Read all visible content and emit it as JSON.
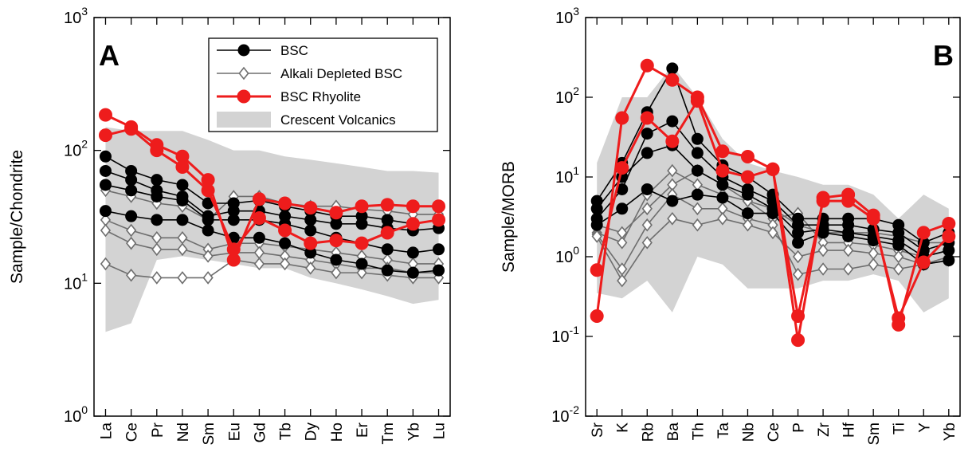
{
  "chart_data": [
    {
      "type": "line",
      "annotation": "A",
      "ylabel": "Sample/Chondrite",
      "ylog": true,
      "categories": [
        "La",
        "Ce",
        "Pr",
        "Nd",
        "Sm",
        "Eu",
        "Gd",
        "Tb",
        "Dy",
        "Ho",
        "Er",
        "Tm",
        "Yb",
        "Lu"
      ],
      "ylim": [
        1,
        1000
      ],
      "yticks": [
        {
          "value": 1,
          "label": "10",
          "exponent": "0"
        },
        {
          "value": 10,
          "label": "10",
          "exponent": "1"
        },
        {
          "value": 100,
          "label": "10",
          "exponent": "2"
        },
        {
          "value": 1000,
          "label": "10",
          "exponent": "3"
        }
      ],
      "legend": "top-right",
      "series": [
        {
          "name": "BSC",
          "color": "#000000",
          "marker": "circle",
          "samples": [
            [
              90,
              70,
              60,
              55,
              40,
              40,
              42,
              38,
              35,
              32,
              32,
              30,
              28,
              30
            ],
            [
              70,
              60,
              50,
              45,
              32,
              35,
              35,
              32,
              30,
              28,
              28,
              26,
              25,
              26
            ],
            [
              55,
              50,
              45,
              42,
              30,
              30,
              30,
              28,
              25,
              22,
              20,
              18,
              17,
              18
            ],
            [
              35,
              32,
              30,
              30,
              25,
              22,
              22,
              20,
              17,
              15,
              14,
              12.5,
              12,
              12.5
            ]
          ]
        },
        {
          "name": "Alkali Depleted BSC",
          "color": "#6e6e6e",
          "marker": "diamond",
          "samples": [
            [
              50,
              45,
              40,
              38,
              30,
              45,
              45,
              40,
              38,
              38,
              36,
              35,
              33,
              33
            ],
            [
              30,
              25,
              22,
              22,
              18,
              20,
              20,
              19,
              18,
              17,
              16,
              15,
              14,
              14
            ],
            [
              25,
              20,
              18,
              18,
              16,
              17,
              17,
              16,
              15,
              14,
              13,
              13,
              12,
              12
            ],
            [
              14,
              11.5,
              11,
              11,
              11,
              15,
              14,
              14,
              13,
              12,
              12,
              11.5,
              11,
              11
            ]
          ]
        },
        {
          "name": "BSC Rhyolite",
          "color": "#ee1c1c",
          "marker": "circle",
          "samples": [
            [
              185,
              150,
              110,
              90,
              60,
              15,
              43,
              40,
              37,
              34,
              38,
              39,
              38,
              38
            ],
            [
              130,
              145,
              100,
              75,
              50,
              18,
              31,
              25,
              20,
              21,
              20,
              24,
              28,
              30
            ]
          ]
        },
        {
          "name": "Crescent Volcanics",
          "color": "#d3d3d3",
          "band": true,
          "upper": [
            150,
            140,
            140,
            140,
            120,
            100,
            100,
            90,
            85,
            80,
            75,
            70,
            70,
            68
          ],
          "lower": [
            4.3,
            5,
            15,
            16,
            15,
            14,
            13,
            13,
            11,
            10,
            9,
            8,
            7,
            7.5
          ]
        }
      ]
    },
    {
      "type": "line",
      "annotation": "B",
      "ylabel": "Sample/MORB",
      "ylog": true,
      "categories": [
        "Sr",
        "K",
        "Rb",
        "Ba",
        "Th",
        "Ta",
        "Nb",
        "Ce",
        "P",
        "Zr",
        "Hf",
        "Sm",
        "Ti",
        "Y",
        "Yb"
      ],
      "ylim": [
        0.01,
        1000
      ],
      "yticks": [
        {
          "value": 0.01,
          "label": "10",
          "exponent": "-2"
        },
        {
          "value": 0.1,
          "label": "10",
          "exponent": "-1"
        },
        {
          "value": 1,
          "label": "10",
          "exponent": "0"
        },
        {
          "value": 10,
          "label": "10",
          "exponent": "1"
        },
        {
          "value": 100,
          "label": "10",
          "exponent": "2"
        },
        {
          "value": 1000,
          "label": "10",
          "exponent": "3"
        }
      ],
      "series": [
        {
          "color": "#000000",
          "marker": "circle",
          "samples": [
            [
              5,
              15,
              65,
              230,
              30,
              14,
              10,
              6,
              3,
              3,
              3,
              3,
              2.5,
              1.5,
              2
            ],
            [
              4,
              10,
              20,
              25,
              12,
              8,
              6,
              4,
              2,
              2.2,
              2,
              1.8,
              1.6,
              1,
              1.2
            ],
            [
              3,
              7,
              35,
              50,
              20,
              10,
              7,
              5,
              2.5,
              2.5,
              2.5,
              2.2,
              2,
              1.2,
              1.5
            ],
            [
              2.5,
              4,
              7,
              5,
              6,
              5.5,
              3.5,
              3.5,
              1.5,
              2,
              1.8,
              1.6,
              1.4,
              0.8,
              0.9
            ]
          ]
        },
        {
          "color": "#6e6e6e",
          "marker": "diamond",
          "samples": [
            [
              2,
              1.5,
              6,
              12,
              8,
              6,
              5,
              4,
              2.5,
              2,
              2,
              2,
              1.8,
              1.5,
              1.5
            ],
            [
              2.5,
              2,
              4,
              8,
              12,
              8,
              5,
              3,
              3.5,
              1.5,
              1.5,
              1.4,
              1.2,
              1,
              1.2
            ],
            [
              1.9,
              0.7,
              2.5,
              6,
              4,
              4,
              3,
              2.5,
              0.6,
              0.7,
              0.7,
              0.8,
              0.7,
              0.8,
              0.9
            ],
            [
              1.8,
              0.5,
              1.5,
              3,
              2.5,
              3,
              2.5,
              2,
              1,
              1.2,
              1.2,
              1.1,
              1,
              0.8,
              1
            ]
          ]
        },
        {
          "color": "#ee1c1c",
          "marker": "circle",
          "samples": [
            [
              0.18,
              55,
              250,
              165,
              100,
              21,
              18,
              12.5,
              0.09,
              5.5,
              6,
              3.3,
              0.14,
              2,
              2.6
            ],
            [
              0.68,
              13,
              55,
              28,
              90,
              12,
              10,
              12.5,
              0.18,
              5,
              5,
              3,
              0.17,
              0.85,
              1.8
            ]
          ]
        },
        {
          "color": "#d3d3d3",
          "band": true,
          "upper": [
            15,
            100,
            100,
            250,
            100,
            30,
            15,
            12,
            10,
            8,
            8,
            6,
            3,
            6,
            4
          ],
          "lower": [
            0.35,
            0.3,
            0.5,
            0.2,
            1,
            0.8,
            0.4,
            0.4,
            0.4,
            0.5,
            0.5,
            0.6,
            0.5,
            0.2,
            0.3
          ]
        }
      ]
    }
  ]
}
